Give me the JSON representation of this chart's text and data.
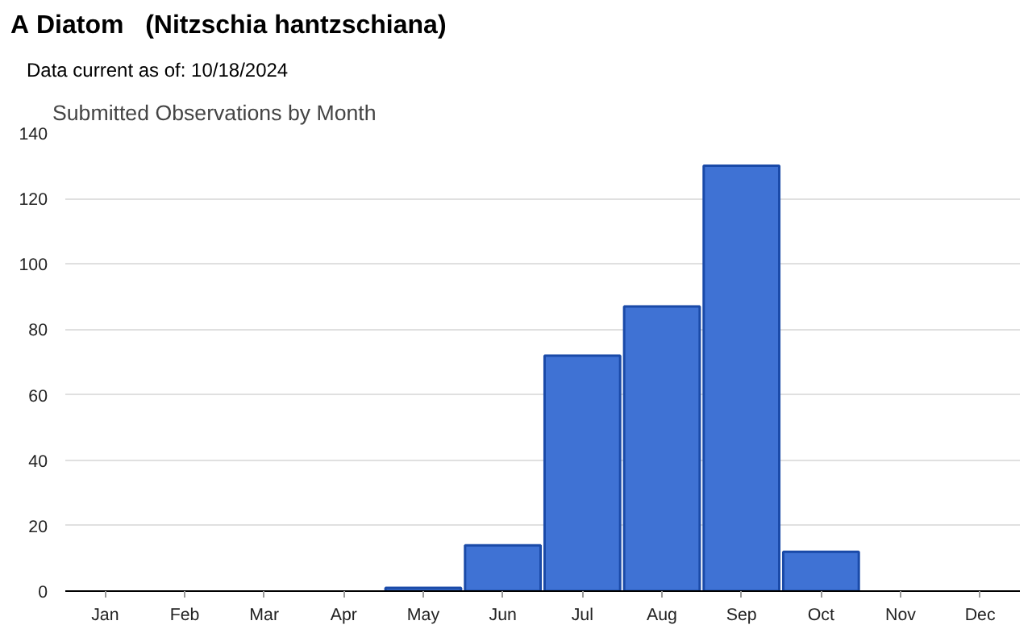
{
  "chart_data": {
    "type": "bar",
    "title": "A Diatom   (Nitzschia hantzschiana)",
    "subtitle": "Data current as of: 10/18/2024",
    "annotations": [
      "Submitted Observations by Month"
    ],
    "categories": [
      "Jan",
      "Feb",
      "Mar",
      "Apr",
      "May",
      "Jun",
      "Jul",
      "Aug",
      "Sep",
      "Oct",
      "Nov",
      "Dec"
    ],
    "values": [
      0,
      0,
      0,
      0,
      1,
      14,
      72,
      87,
      130,
      12,
      0,
      0
    ],
    "color": "#3f72d4",
    "ylim": [
      0,
      140
    ],
    "yticks": [
      0,
      20,
      40,
      60,
      80,
      100,
      120,
      140
    ],
    "grid": "y"
  }
}
